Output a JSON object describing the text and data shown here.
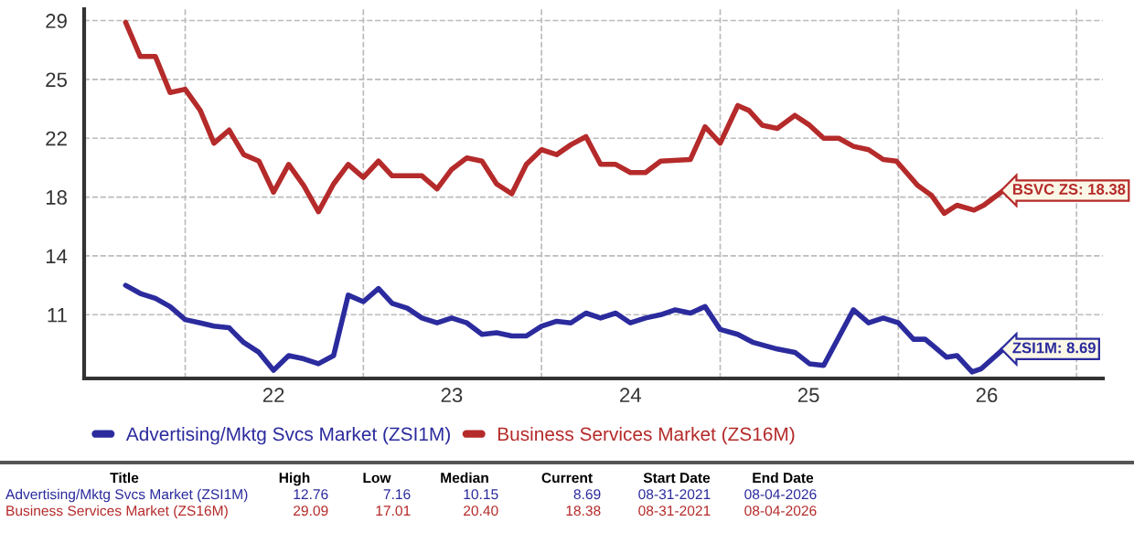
{
  "chart_data": {
    "type": "line",
    "xlim": [
      "2021-06-08",
      "2027-02-24"
    ],
    "ylim": [
      6.9,
      29.5
    ],
    "xticks": [
      {
        "value": "2022-01-01",
        "label": null
      },
      {
        "value": "2022-07-01",
        "label": "22"
      },
      {
        "value": "2023-01-01",
        "label": null
      },
      {
        "value": "2023-07-01",
        "label": "23"
      },
      {
        "value": "2024-01-01",
        "label": null
      },
      {
        "value": "2024-07-01",
        "label": "24"
      },
      {
        "value": "2025-01-01",
        "label": null
      },
      {
        "value": "2025-07-01",
        "label": "25"
      },
      {
        "value": "2026-01-01",
        "label": null
      },
      {
        "value": "2026-07-01",
        "label": "26"
      },
      {
        "value": "2027-01-01",
        "label": null
      }
    ],
    "yticks": [
      {
        "value": 10.8,
        "label": "11"
      },
      {
        "value": 14.4,
        "label": "14"
      },
      {
        "value": 18.0,
        "label": "18"
      },
      {
        "value": 21.6,
        "label": "22"
      },
      {
        "value": 25.2,
        "label": "25"
      },
      {
        "value": 28.8,
        "label": "29"
      }
    ],
    "grid": true,
    "legend": "bottom",
    "line_style": "solid",
    "marker": "none",
    "series": [
      {
        "name": "Advertising/Mktg Svcs Market (ZSI1M)",
        "color": "#2b2b9e",
        "x": [
          "2021-09-01",
          "2021-10-01",
          "2021-11-01",
          "2021-12-01",
          "2022-01-01",
          "2022-02-01",
          "2022-03-01",
          "2022-04-01",
          "2022-05-01",
          "2022-06-01",
          "2022-07-01",
          "2022-08-01",
          "2022-09-01",
          "2022-10-01",
          "2022-11-01",
          "2022-12-01",
          "2023-01-01",
          "2023-02-01",
          "2023-03-01",
          "2023-04-01",
          "2023-05-01",
          "2023-06-01",
          "2023-07-01",
          "2023-08-01",
          "2023-09-01",
          "2023-10-01",
          "2023-11-01",
          "2023-12-01",
          "2024-01-01",
          "2024-02-01",
          "2024-03-01",
          "2024-04-01",
          "2024-05-01",
          "2024-06-01",
          "2024-07-01",
          "2024-08-01",
          "2024-09-01",
          "2024-10-01",
          "2024-11-01",
          "2024-12-01",
          "2025-01-01",
          "2025-02-06",
          "2025-03-10",
          "2025-04-28",
          "2025-06-03",
          "2025-07-03",
          "2025-08-01",
          "2025-10-01",
          "2025-11-01",
          "2025-12-01",
          "2026-01-01",
          "2026-02-01",
          "2026-02-25",
          "2026-04-10",
          "2026-05-01",
          "2026-06-01",
          "2026-06-20",
          "2026-08-04"
        ],
        "values": [
          12.6,
          12.1,
          11.8,
          11.3,
          10.5,
          10.3,
          10.1,
          10.0,
          9.1,
          8.5,
          7.4,
          8.3,
          8.1,
          7.8,
          8.3,
          12.0,
          11.6,
          12.4,
          11.5,
          11.2,
          10.6,
          10.3,
          10.6,
          10.3,
          9.6,
          9.7,
          9.5,
          9.5,
          10.1,
          10.4,
          10.3,
          10.9,
          10.6,
          10.9,
          10.3,
          10.6,
          10.8,
          11.1,
          10.9,
          11.3,
          9.9,
          9.6,
          9.1,
          8.7,
          8.5,
          7.8,
          7.7,
          11.1,
          10.3,
          10.6,
          10.3,
          9.3,
          9.3,
          8.2,
          8.3,
          7.3,
          7.5,
          8.7
        ]
      },
      {
        "name": "Business Services Market (ZS16M)",
        "color": "#b52a2a",
        "x": [
          "2021-09-01",
          "2021-10-01",
          "2021-11-01",
          "2021-12-01",
          "2022-01-01",
          "2022-02-01",
          "2022-03-01",
          "2022-04-01",
          "2022-05-01",
          "2022-06-01",
          "2022-07-01",
          "2022-08-01",
          "2022-09-01",
          "2022-10-01",
          "2022-11-01",
          "2022-12-01",
          "2023-01-01",
          "2023-02-01",
          "2023-03-01",
          "2023-05-01",
          "2023-06-01",
          "2023-07-01",
          "2023-08-01",
          "2023-09-01",
          "2023-10-01",
          "2023-11-01",
          "2023-12-01",
          "2024-01-01",
          "2024-02-01",
          "2024-03-01",
          "2024-04-01",
          "2024-05-01",
          "2024-06-01",
          "2024-07-01",
          "2024-08-01",
          "2024-09-01",
          "2024-11-01",
          "2024-12-01",
          "2025-01-01",
          "2025-02-06",
          "2025-03-01",
          "2025-03-28",
          "2025-04-28",
          "2025-06-03",
          "2025-07-03",
          "2025-08-01",
          "2025-09-01",
          "2025-10-01",
          "2025-11-01",
          "2025-12-01",
          "2025-12-28",
          "2026-02-10",
          "2026-03-10",
          "2026-04-05",
          "2026-05-01",
          "2026-06-05",
          "2026-06-25",
          "2026-08-04"
        ],
        "values": [
          28.7,
          26.6,
          26.6,
          24.4,
          24.6,
          23.3,
          21.3,
          22.1,
          20.6,
          20.2,
          18.3,
          20.0,
          18.7,
          17.1,
          18.8,
          20.0,
          19.2,
          20.2,
          19.3,
          19.3,
          18.5,
          19.7,
          20.4,
          20.2,
          18.8,
          18.2,
          20.0,
          20.9,
          20.6,
          21.2,
          21.7,
          20.0,
          20.0,
          19.5,
          19.5,
          20.2,
          20.3,
          22.3,
          21.3,
          23.6,
          23.3,
          22.4,
          22.2,
          23.0,
          22.4,
          21.6,
          21.6,
          21.1,
          20.9,
          20.3,
          20.2,
          18.7,
          18.1,
          17.0,
          17.5,
          17.2,
          17.5,
          18.4
        ]
      }
    ],
    "annotations": [
      {
        "text": "ZSI1M: 8.69",
        "x": "2026-08-04",
        "y": 8.7
      },
      {
        "text": "BSVC ZS: 18.38",
        "x": "2026-08-04",
        "y": 18.4
      },
      "Title",
      "High",
      "Low",
      "Median",
      "Current",
      "Start Date",
      "End Date",
      "Advertising/Mktg Svcs Market (ZSI1M)",
      "12.76",
      "7.16",
      "10.15",
      "8.69",
      "08-31-2021",
      "08-04-2026",
      "Business Services Market (ZS16M)",
      "29.09",
      "17.01",
      "20.40",
      "18.38",
      "08-31-2021",
      "08-04-2026"
    ]
  }
}
